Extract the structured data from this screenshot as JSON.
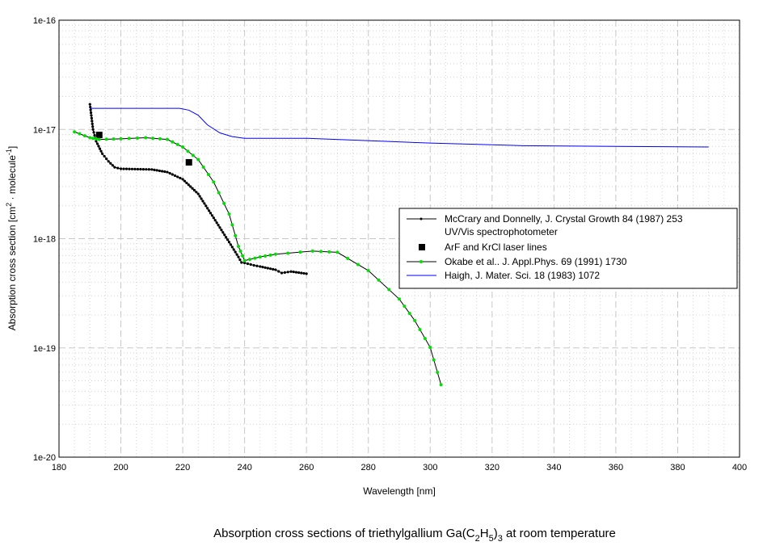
{
  "chart_data": {
    "type": "line",
    "title": "Absorption cross sections of triethylgallium Ga(C2H5)3 at room temperature",
    "title_parts": {
      "pre": "Absorption cross sections of triethylgallium Ga(C",
      "sub1": "2",
      "mid": "H",
      "sub2": "5",
      "mid2": ")",
      "sub3": "3",
      "post": " at room temperature"
    },
    "xlabel": "Wavelength [nm]",
    "ylabel_parts": {
      "pre": "Absorption cross section [cm",
      "sup1": "2",
      "mid": " · molecule",
      "sup2": "-1",
      "post": "]"
    },
    "xlim": [
      180,
      400
    ],
    "ylim": [
      1e-20,
      1e-16
    ],
    "yscale": "log",
    "grid": true,
    "legend_position": "right",
    "x_ticks": [
      "180",
      "200",
      "220",
      "240",
      "260",
      "280",
      "300",
      "320",
      "340",
      "360",
      "380",
      "400"
    ],
    "y_ticks": [
      "1e-16",
      "1e-17",
      "1e-18",
      "1e-19",
      "1e-20"
    ],
    "series": [
      {
        "name": "McCrary and Donnelly, J. Crystal Growth 84 (1987) 253",
        "name2": "UV/Vis spectrophotometer",
        "color": "#000000",
        "marker": "small-dot",
        "x": [
          190,
          191,
          192,
          194,
          196,
          198,
          200,
          210,
          215,
          220,
          225,
          230,
          235,
          238,
          239,
          240,
          243,
          245,
          250,
          252,
          255,
          260
        ],
        "y": [
          1.7e-17,
          1e-17,
          7.8e-18,
          6e-18,
          5.1e-18,
          4.5e-18,
          4.36e-18,
          4.3e-18,
          4.07e-18,
          3.5e-18,
          2.57e-18,
          1.55e-18,
          9.3e-19,
          6.8e-19,
          6.05e-19,
          6e-19,
          5.7e-19,
          5.56e-19,
          5.19e-19,
          4.85e-19,
          5e-19,
          4.78e-19
        ]
      },
      {
        "name": "ArF and KrCl laser lines",
        "color": "#000000",
        "marker": "square",
        "x": [
          193,
          222
        ],
        "y": [
          8.9e-18,
          5e-18
        ]
      },
      {
        "name": "Okabe et al.. J. Appl.Phys. 69 (1991) 1730",
        "color": "#000000",
        "marker_color": "#00e000",
        "marker": "dot",
        "x": [
          185,
          190,
          193,
          200,
          208,
          215,
          220,
          225,
          230,
          235,
          238,
          240,
          245,
          250,
          262,
          270,
          280,
          290,
          295,
          300,
          303.5
        ],
        "y": [
          9.5e-18,
          8.4e-18,
          8.1e-18,
          8.2e-18,
          8.4e-18,
          8.1e-18,
          6.9e-18,
          5.3e-18,
          3.3e-18,
          1.68e-18,
          8.5e-19,
          6.3e-19,
          6.8e-19,
          7.2e-19,
          7.7e-19,
          7.5e-19,
          5.1e-19,
          2.8e-19,
          1.78e-19,
          1.01e-19,
          4.6e-20
        ]
      },
      {
        "name": "Haigh, J. Mater. Sci. 18 (1983) 1072",
        "color": "#0000ff",
        "marker": "none",
        "x": [
          190,
          219,
          222,
          225,
          228,
          232,
          236,
          240,
          260,
          300,
          330,
          390
        ],
        "y": [
          1.56e-17,
          1.56e-17,
          1.5e-17,
          1.35e-17,
          1.1e-17,
          9.3e-18,
          8.6e-18,
          8.3e-18,
          8.3e-18,
          7.5e-18,
          7.1e-18,
          6.9e-18
        ]
      }
    ]
  }
}
